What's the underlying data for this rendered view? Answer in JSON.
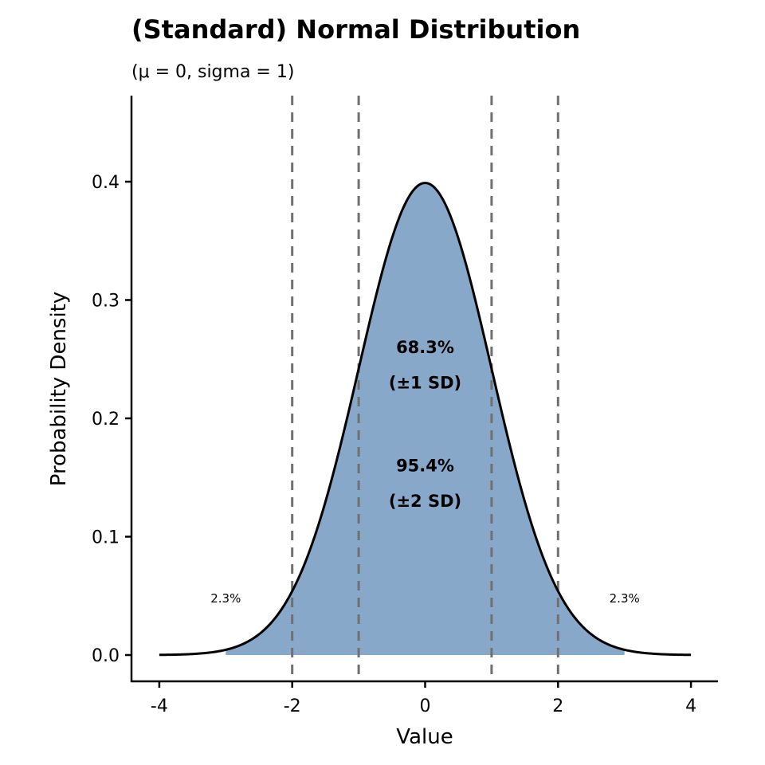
{
  "chart_data": {
    "type": "area",
    "title": "(Standard) Normal Distribution",
    "subtitle": "(μ = 0, sigma = 1)",
    "xlabel": "Value",
    "ylabel": "Probability Density",
    "mean": 0,
    "sd": 1,
    "xlim": [
      -4,
      4
    ],
    "ylim": [
      0,
      0.4
    ],
    "shaded_range": [
      -3,
      3
    ],
    "x_ticks": [
      -4,
      -2,
      0,
      2,
      4
    ],
    "x_tick_labels": [
      "-4",
      "-2",
      "0",
      "2",
      "4"
    ],
    "y_ticks": [
      0,
      0.1,
      0.2,
      0.3,
      0.4
    ],
    "y_tick_labels": [
      "0.0",
      "0.1",
      "0.2",
      "0.3",
      "0.4"
    ],
    "reference_lines": [
      -2,
      -1,
      1,
      2
    ],
    "annotations": [
      {
        "text": "68.3%",
        "x": 0,
        "y": 0.26,
        "bold": true
      },
      {
        "text": "(±1 SD)",
        "x": 0,
        "y": 0.23,
        "bold": true
      },
      {
        "text": "95.4%",
        "x": 0,
        "y": 0.16,
        "bold": true
      },
      {
        "text": "(±2 SD)",
        "x": 0,
        "y": 0.13,
        "bold": true
      },
      {
        "text": "2.3%",
        "x": -3,
        "y": 0.049,
        "bold": false
      },
      {
        "text": "2.3%",
        "x": 3,
        "y": 0.049,
        "bold": false
      }
    ],
    "grid": false,
    "colors": {
      "fill": "#88A8C9",
      "curve": "#000000",
      "reference": "#707070"
    }
  }
}
